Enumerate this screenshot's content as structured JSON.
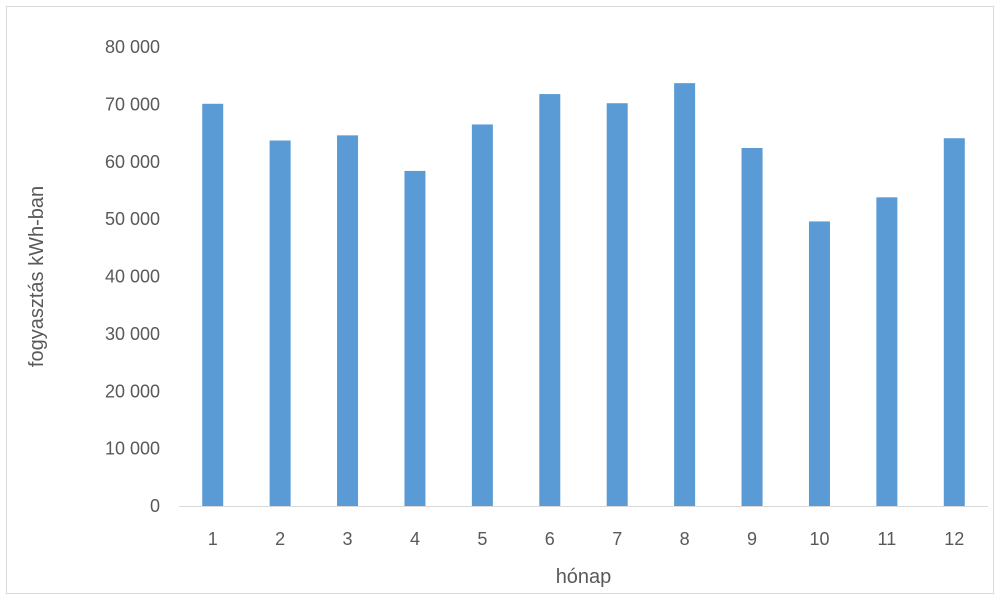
{
  "chart_data": {
    "type": "bar",
    "title": "",
    "xlabel": "hónap",
    "ylabel": "fogyasztás kWh-ban",
    "categories": [
      "1",
      "2",
      "3",
      "4",
      "5",
      "6",
      "7",
      "8",
      "9",
      "10",
      "11",
      "12"
    ],
    "series": [
      {
        "values": [
          70100,
          63700,
          64600,
          58400,
          66500,
          71800,
          70200,
          73700,
          62400,
          49600,
          53800,
          64100
        ],
        "color": "#5b9bd5"
      }
    ],
    "ylim": [
      0,
      80000
    ],
    "yticks": [
      0,
      10000,
      20000,
      30000,
      40000,
      50000,
      60000,
      70000,
      80000
    ],
    "ytick_labels": [
      "0",
      "10 000",
      "20 000",
      "30 000",
      "40 000",
      "50 000",
      "60 000",
      "70 000",
      "80 000"
    ],
    "grid": false,
    "legend": "none"
  }
}
